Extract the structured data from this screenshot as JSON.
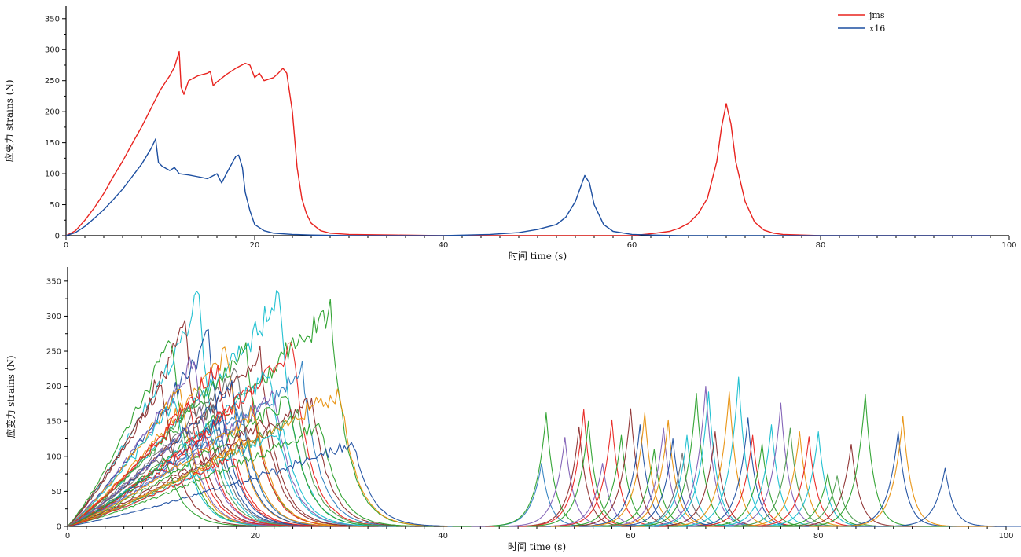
{
  "chart_data": [
    {
      "type": "line",
      "xlabel": "时间 time (s)",
      "ylabel": "应变力 strains (N)",
      "xlim": [
        0,
        100
      ],
      "ylim": [
        0,
        370
      ],
      "xticks": [
        0,
        20,
        40,
        60,
        80,
        100
      ],
      "yticks": [
        0,
        50,
        100,
        150,
        200,
        250,
        300,
        350
      ],
      "grid": false,
      "legend": "top-right",
      "series": [
        {
          "name": "jms",
          "color": "#e8231f",
          "x": [
            0,
            1,
            2,
            3,
            4,
            5,
            6,
            7,
            8,
            9,
            10,
            11,
            11.5,
            12,
            12.2,
            12.5,
            13,
            14,
            15,
            15.3,
            15.6,
            16,
            17,
            18,
            19,
            19.5,
            20,
            20.5,
            21,
            22,
            22.5,
            23,
            23.4,
            24,
            24.5,
            25,
            25.5,
            26,
            27,
            28,
            30,
            35,
            40,
            45,
            50,
            55,
            60,
            62,
            64,
            65,
            66,
            67,
            68,
            69,
            69.5,
            70,
            70.5,
            71,
            72,
            73,
            74,
            75,
            76,
            78,
            80,
            90,
            98
          ],
          "y": [
            0,
            8,
            25,
            45,
            68,
            95,
            120,
            148,
            175,
            205,
            235,
            258,
            272,
            297,
            240,
            228,
            250,
            258,
            262,
            265,
            242,
            248,
            260,
            270,
            278,
            275,
            255,
            262,
            250,
            255,
            262,
            270,
            262,
            200,
            110,
            60,
            35,
            20,
            8,
            4,
            2,
            1,
            0,
            0,
            0,
            0,
            0,
            3,
            7,
            12,
            20,
            35,
            60,
            120,
            175,
            213,
            180,
            120,
            55,
            22,
            9,
            4,
            2,
            1,
            0,
            0,
            0
          ]
        },
        {
          "name": "x16",
          "color": "#1c4ea0",
          "x": [
            0,
            1,
            2,
            3,
            4,
            5,
            6,
            7,
            8,
            9,
            9.5,
            9.8,
            10.2,
            11,
            11.5,
            12,
            13,
            14,
            15,
            16,
            16.5,
            17,
            18,
            18.3,
            18.7,
            19,
            19.5,
            20,
            21,
            22,
            24,
            26,
            30,
            40,
            45,
            48,
            50,
            52,
            53,
            54,
            55,
            55.5,
            56,
            57,
            58,
            60,
            62,
            65,
            70,
            80,
            90,
            98
          ],
          "y": [
            0,
            5,
            15,
            28,
            42,
            58,
            75,
            95,
            115,
            140,
            156,
            118,
            112,
            105,
            110,
            100,
            98,
            95,
            92,
            100,
            85,
            100,
            128,
            130,
            110,
            70,
            40,
            18,
            8,
            4,
            2,
            1,
            0,
            0,
            2,
            5,
            10,
            18,
            30,
            55,
            97,
            85,
            50,
            18,
            7,
            2,
            1,
            0,
            0,
            0,
            0,
            0
          ]
        }
      ]
    },
    {
      "type": "line",
      "xlabel": "时间 time (s)",
      "ylabel": "应变力 strains (N)",
      "xlim": [
        0,
        100
      ],
      "ylim": [
        0,
        370
      ],
      "xticks": [
        0,
        20,
        40,
        60,
        80,
        100
      ],
      "yticks": [
        0,
        50,
        100,
        150,
        200,
        250,
        300,
        350
      ],
      "grid": false,
      "legend": "none",
      "series_count": 80,
      "palette": [
        "#e8231f",
        "#1c4ea0",
        "#2aa02b",
        "#e8900c",
        "#17becf",
        "#8c2d2d",
        "#7f5fb5",
        "#6b6b6b",
        "#4a9a4a",
        "#2f7fc0"
      ],
      "series": [
        {
          "peak_t": 14,
          "peak_v": 330,
          "color": "#17becf"
        },
        {
          "peak_t": 22.5,
          "peak_v": 335,
          "color": "#17becf"
        },
        {
          "peak_t": 28,
          "peak_v": 320,
          "color": "#2aa02b"
        },
        {
          "peak_t": 12.5,
          "peak_v": 292,
          "color": "#8c2d2d"
        },
        {
          "peak_t": 11,
          "peak_v": 280,
          "color": "#2aa02b"
        },
        {
          "peak_t": 15,
          "peak_v": 275,
          "color": "#1c4ea0"
        },
        {
          "peak_t": 17,
          "peak_v": 262,
          "color": "#e8900c"
        },
        {
          "peak_t": 19,
          "peak_v": 268,
          "color": "#2aa02b"
        },
        {
          "peak_t": 24,
          "peak_v": 262,
          "color": "#e8231f"
        },
        {
          "peak_t": 20.5,
          "peak_v": 252,
          "color": "#8c2d2d"
        },
        {
          "peak_t": 13.5,
          "peak_v": 245,
          "color": "#7f5fb5"
        },
        {
          "peak_t": 16,
          "peak_v": 238,
          "color": "#e8231f"
        },
        {
          "peak_t": 18,
          "peak_v": 230,
          "color": "#6b6b6b"
        },
        {
          "peak_t": 21.5,
          "peak_v": 228,
          "color": "#17becf"
        },
        {
          "peak_t": 25,
          "peak_v": 225,
          "color": "#2f7fc0"
        },
        {
          "peak_t": 10,
          "peak_v": 212,
          "color": "#8c2d2d"
        },
        {
          "peak_t": 12,
          "peak_v": 205,
          "color": "#e8900c"
        },
        {
          "peak_t": 14.5,
          "peak_v": 200,
          "color": "#4a9a4a"
        },
        {
          "peak_t": 17.5,
          "peak_v": 210,
          "color": "#1c4ea0"
        },
        {
          "peak_t": 19.5,
          "peak_v": 198,
          "color": "#e8231f"
        },
        {
          "peak_t": 22,
          "peak_v": 195,
          "color": "#7f5fb5"
        },
        {
          "peak_t": 23.5,
          "peak_v": 190,
          "color": "#2aa02b"
        },
        {
          "peak_t": 26,
          "peak_v": 185,
          "color": "#8c2d2d"
        },
        {
          "peak_t": 29,
          "peak_v": 200,
          "color": "#e8900c"
        },
        {
          "peak_t": 11.5,
          "peak_v": 188,
          "color": "#17becf"
        },
        {
          "peak_t": 13,
          "peak_v": 180,
          "color": "#e8231f"
        },
        {
          "peak_t": 15.5,
          "peak_v": 175,
          "color": "#6b6b6b"
        },
        {
          "peak_t": 18.5,
          "peak_v": 172,
          "color": "#2f7fc0"
        },
        {
          "peak_t": 20,
          "peak_v": 168,
          "color": "#e8900c"
        },
        {
          "peak_t": 24.5,
          "peak_v": 165,
          "color": "#4a9a4a"
        },
        {
          "peak_t": 16.5,
          "peak_v": 160,
          "color": "#1c4ea0"
        },
        {
          "peak_t": 21,
          "peak_v": 155,
          "color": "#8c2d2d"
        },
        {
          "peak_t": 27,
          "peak_v": 150,
          "color": "#2aa02b"
        },
        {
          "peak_t": 12.8,
          "peak_v": 148,
          "color": "#7f5fb5"
        },
        {
          "peak_t": 23,
          "peak_v": 142,
          "color": "#17becf"
        },
        {
          "peak_t": 30.5,
          "peak_v": 122,
          "color": "#1c4ea0"
        },
        {
          "peak_t": 14.8,
          "peak_v": 135,
          "color": "#e8231f"
        },
        {
          "peak_t": 19.2,
          "peak_v": 128,
          "color": "#e8900c"
        },
        {
          "peak_t": 10.5,
          "peak_v": 95,
          "color": "#2aa02b"
        },
        {
          "peak_t": 17.8,
          "peak_v": 105,
          "color": "#e8231f"
        },
        {
          "peak_t": 50.5,
          "peak_v": 90,
          "color": "#2f7fc0"
        },
        {
          "peak_t": 51,
          "peak_v": 162,
          "color": "#2aa02b"
        },
        {
          "peak_t": 53,
          "peak_v": 127,
          "color": "#7f5fb5"
        },
        {
          "peak_t": 54.5,
          "peak_v": 142,
          "color": "#8c2d2d"
        },
        {
          "peak_t": 55,
          "peak_v": 167,
          "color": "#e8231f"
        },
        {
          "peak_t": 55.5,
          "peak_v": 150,
          "color": "#2aa02b"
        },
        {
          "peak_t": 57,
          "peak_v": 90,
          "color": "#7f5fb5"
        },
        {
          "peak_t": 58,
          "peak_v": 152,
          "color": "#e8231f"
        },
        {
          "peak_t": 59,
          "peak_v": 130,
          "color": "#2aa02b"
        },
        {
          "peak_t": 60,
          "peak_v": 168,
          "color": "#8c2d2d"
        },
        {
          "peak_t": 61,
          "peak_v": 145,
          "color": "#1c4ea0"
        },
        {
          "peak_t": 61.5,
          "peak_v": 162,
          "color": "#e8900c"
        },
        {
          "peak_t": 62.5,
          "peak_v": 110,
          "color": "#2aa02b"
        },
        {
          "peak_t": 63.5,
          "peak_v": 140,
          "color": "#7f5fb5"
        },
        {
          "peak_t": 64,
          "peak_v": 152,
          "color": "#e8900c"
        },
        {
          "peak_t": 64.5,
          "peak_v": 125,
          "color": "#1c4ea0"
        },
        {
          "peak_t": 65.5,
          "peak_v": 105,
          "color": "#6b6b6b"
        },
        {
          "peak_t": 66,
          "peak_v": 130,
          "color": "#17becf"
        },
        {
          "peak_t": 67,
          "peak_v": 190,
          "color": "#2aa02b"
        },
        {
          "peak_t": 68,
          "peak_v": 200,
          "color": "#7f5fb5"
        },
        {
          "peak_t": 68.3,
          "peak_v": 192,
          "color": "#17becf"
        },
        {
          "peak_t": 69,
          "peak_v": 135,
          "color": "#8c2d2d"
        },
        {
          "peak_t": 70.5,
          "peak_v": 192,
          "color": "#e8900c"
        },
        {
          "peak_t": 71.5,
          "peak_v": 213,
          "color": "#17becf"
        },
        {
          "peak_t": 72.5,
          "peak_v": 155,
          "color": "#1c4ea0"
        },
        {
          "peak_t": 73,
          "peak_v": 130,
          "color": "#e8231f"
        },
        {
          "peak_t": 74,
          "peak_v": 118,
          "color": "#2aa02b"
        },
        {
          "peak_t": 75,
          "peak_v": 145,
          "color": "#17becf"
        },
        {
          "peak_t": 76,
          "peak_v": 176,
          "color": "#7f5fb5"
        },
        {
          "peak_t": 77,
          "peak_v": 140,
          "color": "#4a9a4a"
        },
        {
          "peak_t": 78,
          "peak_v": 135,
          "color": "#e8900c"
        },
        {
          "peak_t": 79,
          "peak_v": 128,
          "color": "#e8231f"
        },
        {
          "peak_t": 80,
          "peak_v": 135,
          "color": "#17becf"
        },
        {
          "peak_t": 81,
          "peak_v": 75,
          "color": "#2aa02b"
        },
        {
          "peak_t": 82,
          "peak_v": 72,
          "color": "#4a9a4a"
        },
        {
          "peak_t": 83.5,
          "peak_v": 117,
          "color": "#8c2d2d"
        },
        {
          "peak_t": 85,
          "peak_v": 188,
          "color": "#2aa02b"
        },
        {
          "peak_t": 88.5,
          "peak_v": 135,
          "color": "#1c4ea0"
        },
        {
          "peak_t": 89,
          "peak_v": 157,
          "color": "#e8900c"
        },
        {
          "peak_t": 93.5,
          "peak_v": 83,
          "color": "#1c4ea0"
        }
      ]
    }
  ]
}
